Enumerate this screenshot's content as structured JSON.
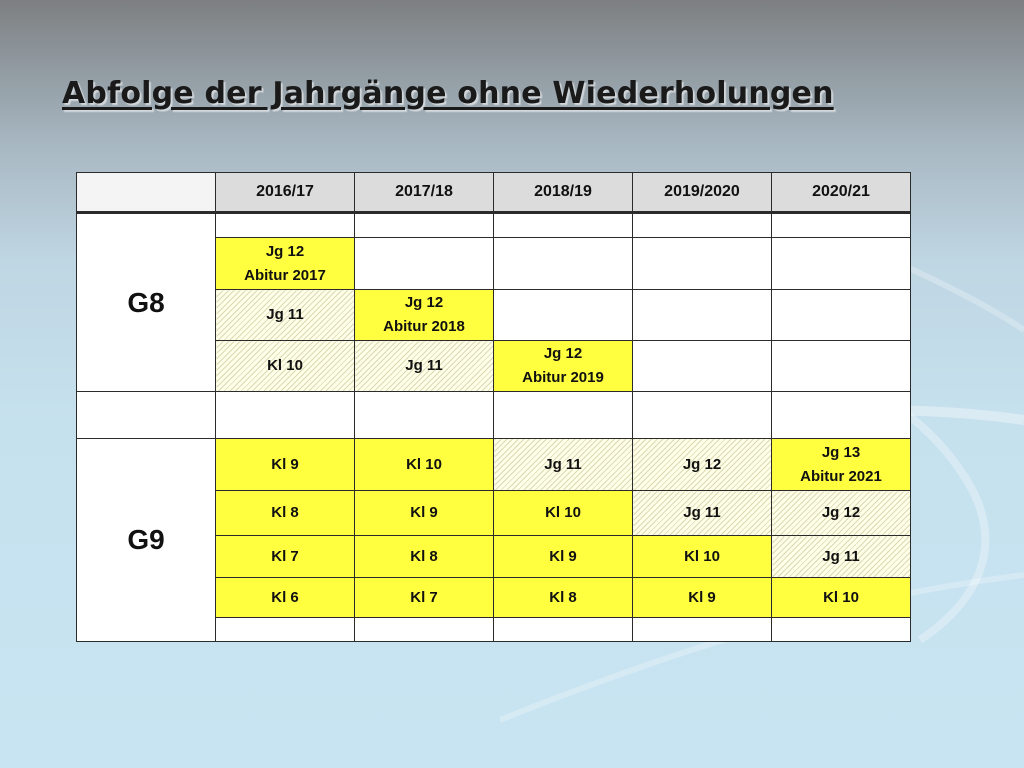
{
  "title": "Abfolge der Jahrgänge ohne Wiederholungen",
  "table": {
    "headers": [
      "",
      "2016/17",
      "2017/18",
      "2018/19",
      "2019/2020",
      "2020/21"
    ],
    "groups": [
      "G8",
      "G9"
    ],
    "g8": [
      [
        "",
        "",
        "",
        "",
        ""
      ],
      [
        "Jg 12",
        "",
        "",
        "",
        ""
      ],
      [
        "Jg 11",
        "Jg 12",
        "",
        "",
        ""
      ],
      [
        "Kl 10",
        "Jg 11",
        "Jg 12",
        "",
        ""
      ]
    ],
    "g8_abitur": [
      "Abitur 2017",
      "Abitur 2018",
      "Abitur 2019"
    ],
    "spacer": [
      "",
      "",
      "",
      "",
      "",
      ""
    ],
    "g9": [
      [
        "Kl 9",
        "Kl 10",
        "Jg 11",
        "Jg 12",
        "Jg 13"
      ],
      [
        "Kl 8",
        "Kl 9",
        "Kl 10",
        "Jg 11",
        "Jg 12"
      ],
      [
        "Kl 7",
        "Kl 8",
        "Kl 9",
        "Kl 10",
        "Jg 11"
      ],
      [
        "Kl 6",
        "Kl 7",
        "Kl 8",
        "Kl 9",
        "Kl 10"
      ],
      [
        "",
        "",
        "",
        "",
        ""
      ]
    ],
    "g9_abitur": "Abitur 2021"
  },
  "colors": {
    "highlight_yellow": "#ffff40",
    "pale_yellow": "#fffee8",
    "header_gray": "#dcdcdc"
  }
}
